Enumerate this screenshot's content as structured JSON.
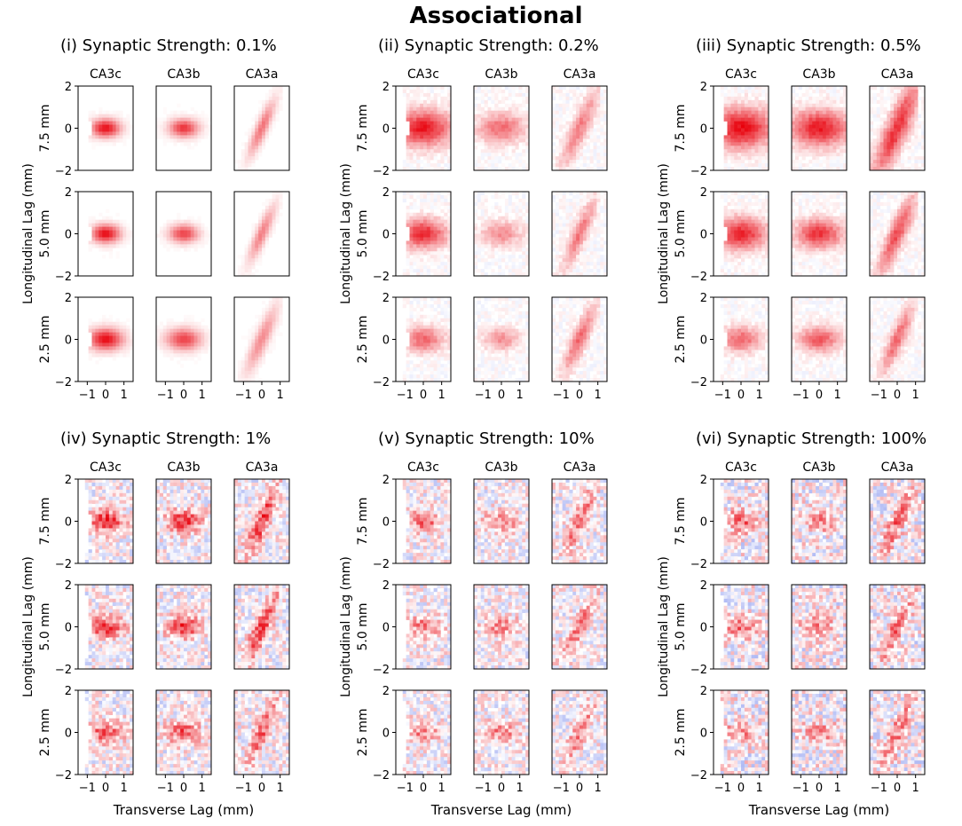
{
  "figure_title": "Associational",
  "shared_axes": {
    "xlabel": "Transverse Lag (mm)",
    "ylabel": "Longitudinal Lag (mm)",
    "xticks": [
      "−1",
      "0",
      "1"
    ],
    "yticks": [
      "2",
      "0",
      "−2"
    ]
  },
  "columns": [
    "CA3c",
    "CA3b",
    "CA3a"
  ],
  "rows": [
    "7.5 mm",
    "5.0 mm",
    "2.5 mm"
  ],
  "colors": {
    "positive": "#e8000b",
    "negative": "#1f3be0",
    "background": "#ffffff",
    "axis": "#000000"
  },
  "chart_data": [
    {
      "type": "heatmap",
      "label": "(i)",
      "title": "Synaptic Strength: 0.1%",
      "noise": 0.02,
      "intensity": [
        [
          0.95,
          0.8,
          0.55
        ],
        [
          0.95,
          0.75,
          0.5
        ],
        [
          0.95,
          0.75,
          0.45
        ]
      ],
      "spread": [
        [
          0.25,
          0.25,
          0.25
        ],
        [
          0.25,
          0.25,
          0.25
        ],
        [
          0.3,
          0.3,
          0.3
        ]
      ],
      "xlim": [
        -1.5,
        1.5
      ],
      "ylim": [
        -2,
        2
      ]
    },
    {
      "type": "heatmap",
      "label": "(ii)",
      "title": "Synaptic Strength: 0.2%",
      "noise": 0.08,
      "intensity": [
        [
          0.9,
          0.6,
          0.5
        ],
        [
          0.85,
          0.45,
          0.55
        ],
        [
          0.6,
          0.45,
          0.6
        ]
      ],
      "spread": [
        [
          0.5,
          0.4,
          0.35
        ],
        [
          0.4,
          0.35,
          0.3
        ],
        [
          0.35,
          0.3,
          0.3
        ]
      ],
      "xlim": [
        -1.5,
        1.5
      ],
      "ylim": [
        -2,
        2
      ]
    },
    {
      "type": "heatmap",
      "label": "(iii)",
      "title": "Synaptic Strength: 0.5%",
      "noise": 0.08,
      "intensity": [
        [
          0.95,
          0.9,
          0.8
        ],
        [
          0.85,
          0.8,
          0.7
        ],
        [
          0.6,
          0.65,
          0.6
        ]
      ],
      "spread": [
        [
          0.55,
          0.5,
          0.45
        ],
        [
          0.45,
          0.4,
          0.35
        ],
        [
          0.35,
          0.35,
          0.3
        ]
      ],
      "xlim": [
        -1.5,
        1.5
      ],
      "ylim": [
        -2,
        2
      ]
    },
    {
      "type": "heatmap",
      "label": "(iv)",
      "title": "Synaptic Strength: 1%",
      "noise": 0.3,
      "intensity": [
        [
          0.85,
          0.8,
          0.8
        ],
        [
          0.75,
          0.8,
          0.8
        ],
        [
          0.65,
          0.65,
          0.6
        ]
      ],
      "spread": [
        [
          0.3,
          0.3,
          0.3
        ],
        [
          0.3,
          0.3,
          0.3
        ],
        [
          0.3,
          0.3,
          0.3
        ]
      ],
      "xlim": [
        -1.5,
        1.5
      ],
      "ylim": [
        -2,
        2
      ]
    },
    {
      "type": "heatmap",
      "label": "(v)",
      "title": "Synaptic Strength: 10%",
      "noise": 0.3,
      "intensity": [
        [
          0.6,
          0.5,
          0.55
        ],
        [
          0.5,
          0.45,
          0.5
        ],
        [
          0.45,
          0.45,
          0.5
        ]
      ],
      "spread": [
        [
          0.3,
          0.3,
          0.3
        ],
        [
          0.3,
          0.3,
          0.3
        ],
        [
          0.3,
          0.3,
          0.3
        ]
      ],
      "xlim": [
        -1.5,
        1.5
      ],
      "ylim": [
        -2,
        2
      ]
    },
    {
      "type": "heatmap",
      "label": "(vi)",
      "title": "Synaptic Strength: 100%",
      "noise": 0.35,
      "intensity": [
        [
          0.6,
          0.45,
          0.55
        ],
        [
          0.5,
          0.45,
          0.55
        ],
        [
          0.45,
          0.45,
          0.5
        ]
      ],
      "spread": [
        [
          0.3,
          0.3,
          0.3
        ],
        [
          0.3,
          0.3,
          0.3
        ],
        [
          0.3,
          0.3,
          0.3
        ]
      ],
      "xlim": [
        -1.5,
        1.5
      ],
      "ylim": [
        -2,
        2
      ]
    }
  ]
}
